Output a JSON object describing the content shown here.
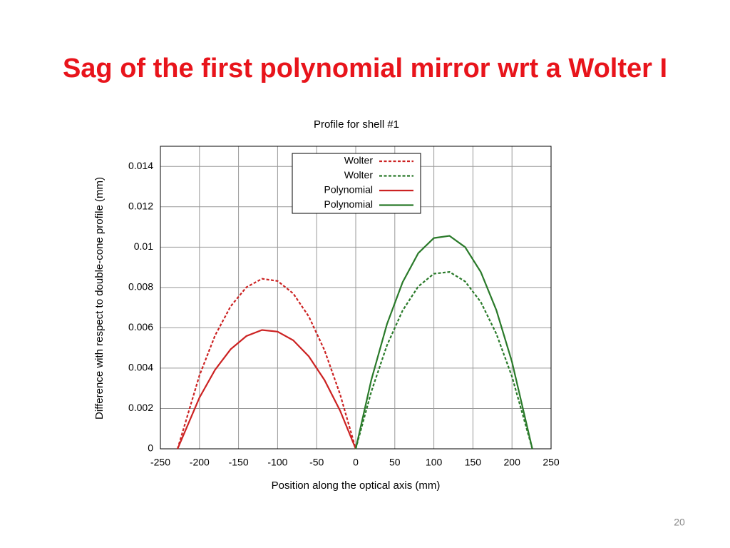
{
  "slide_title": "Sag of the first polynomial mirror wrt a Wolter I",
  "page_number": "20",
  "chart_data": {
    "type": "line",
    "title": "Profile for shell #1",
    "xlabel": "Position along the optical axis (mm)",
    "ylabel": "Difference with respect to double-cone profile (mm)",
    "xlim": [
      -250,
      250
    ],
    "xticks": [
      -250,
      -200,
      -150,
      -100,
      -50,
      0,
      50,
      100,
      150,
      200,
      250
    ],
    "ylim": [
      0,
      0.015
    ],
    "yticks": [
      0,
      0.002,
      0.004,
      0.006,
      0.008,
      0.01,
      0.012,
      0.014
    ],
    "grid": true,
    "legend": "top-center",
    "series": [
      {
        "name": "Wolter",
        "color": "#cc2222",
        "dashed": true,
        "x": [
          -228,
          -200,
          -180,
          -160,
          -140,
          -120,
          -100,
          -80,
          -60,
          -40,
          -20,
          0
        ],
        "values": [
          0,
          0.00364,
          0.00562,
          0.00707,
          0.00801,
          0.00843,
          0.00832,
          0.0077,
          0.00656,
          0.00489,
          0.0027,
          0
        ]
      },
      {
        "name": "Wolter",
        "color": "#2a7a2a",
        "dashed": true,
        "x": [
          0,
          20,
          40,
          60,
          80,
          100,
          120,
          140,
          160,
          180,
          200,
          226
        ],
        "values": [
          0,
          0.00284,
          0.00513,
          0.00686,
          0.00805,
          0.00868,
          0.00877,
          0.0083,
          0.00728,
          0.0057,
          0.00358,
          0
        ]
      },
      {
        "name": "Polynomial",
        "color": "#cc2222",
        "dashed": false,
        "x": [
          -228,
          -200,
          -180,
          -160,
          -140,
          -120,
          -100,
          -80,
          -60,
          -40,
          -20,
          0
        ],
        "values": [
          0,
          0.00254,
          0.00392,
          0.00494,
          0.00559,
          0.00589,
          0.00581,
          0.00538,
          0.00458,
          0.00341,
          0.00189,
          0
        ]
      },
      {
        "name": "Polynomial",
        "color": "#2a7a2a",
        "dashed": false,
        "x": [
          0,
          20,
          40,
          60,
          80,
          100,
          120,
          140,
          160,
          180,
          200,
          226
        ],
        "values": [
          0,
          0.00342,
          0.00618,
          0.00826,
          0.0097,
          0.01045,
          0.01056,
          0.01,
          0.00877,
          0.00687,
          0.00431,
          0
        ]
      }
    ]
  }
}
